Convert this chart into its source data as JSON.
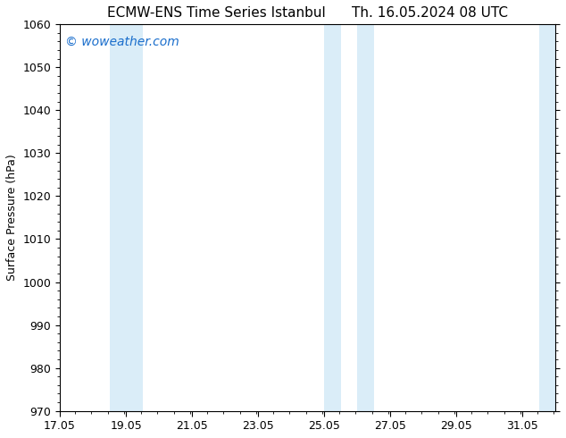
{
  "title_left": "ECMW-ENS Time Series Istanbul",
  "title_right": "Th. 16.05.2024 08 UTC",
  "ylabel": "Surface Pressure (hPa)",
  "ylim": [
    970,
    1060
  ],
  "yticks": [
    970,
    980,
    990,
    1000,
    1010,
    1020,
    1030,
    1040,
    1050,
    1060
  ],
  "xlim": [
    17.05,
    32.05
  ],
  "xticks": [
    17.05,
    19.05,
    21.05,
    23.05,
    25.05,
    27.05,
    29.05,
    31.05
  ],
  "xticklabels": [
    "17.05",
    "19.05",
    "21.05",
    "23.05",
    "25.05",
    "27.05",
    "29.05",
    "31.05"
  ],
  "shaded_bands": [
    {
      "xmin": 18.55,
      "xmax": 19.05,
      "color": "#daedf8"
    },
    {
      "xmin": 19.05,
      "xmax": 19.55,
      "color": "#daedf8"
    },
    {
      "xmin": 25.05,
      "xmax": 25.55,
      "color": "#daedf8"
    },
    {
      "xmin": 26.05,
      "xmax": 26.55,
      "color": "#daedf8"
    },
    {
      "xmin": 31.55,
      "xmax": 32.05,
      "color": "#daedf8"
    }
  ],
  "watermark": "© woweather.com",
  "watermark_color": "#1a6ecc",
  "background_color": "#ffffff",
  "title_fontsize": 11,
  "label_fontsize": 9,
  "tick_fontsize": 9,
  "watermark_fontsize": 10
}
